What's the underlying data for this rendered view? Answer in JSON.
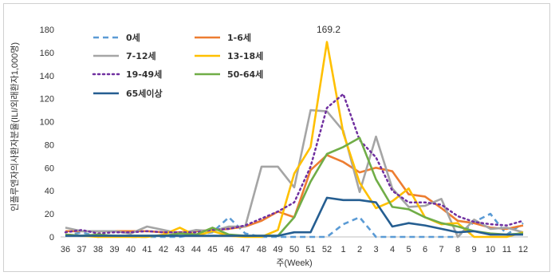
{
  "chart_data": {
    "type": "line",
    "title": "",
    "xlabel": "주(Week)",
    "ylabel": "인플루엔자의사환자분율(ILI/외래환자1,000명)",
    "ylim": [
      0,
      180
    ],
    "yticks": [
      0,
      20,
      40,
      60,
      80,
      100,
      120,
      140,
      160,
      180
    ],
    "grid": false,
    "legend_position": "top",
    "annotation": "169.2",
    "x": [
      "36",
      "37",
      "38",
      "39",
      "40",
      "41",
      "42",
      "43",
      "44",
      "45",
      "46",
      "47",
      "48",
      "49",
      "50",
      "51",
      "52",
      "1",
      "2",
      "3",
      "4",
      "5",
      "6",
      "7",
      "8",
      "9",
      "10",
      "11",
      "12"
    ],
    "series": [
      {
        "name": "0세",
        "color": "#5b9bd5",
        "dash": "dashed",
        "values": [
          1,
          4,
          0,
          1,
          0,
          0,
          0,
          0,
          2,
          4,
          17,
          3,
          0,
          0,
          0,
          0,
          0,
          11,
          17,
          0,
          0,
          0,
          0,
          0,
          0,
          13,
          20,
          2,
          12
        ]
      },
      {
        "name": "1-6세",
        "color": "#ed7d31",
        "dash": "solid",
        "values": [
          5,
          5,
          5,
          5,
          5,
          5,
          4,
          4,
          5,
          6,
          7,
          9,
          14,
          22,
          17,
          58,
          71,
          65,
          56,
          60,
          57,
          37,
          35,
          25,
          14,
          12,
          8,
          7,
          10
        ]
      },
      {
        "name": "7-12세",
        "color": "#a5a5a5",
        "dash": "solid",
        "values": [
          8,
          5,
          5,
          5,
          3,
          9,
          6,
          3,
          6,
          5,
          9,
          9,
          61,
          61,
          43,
          110,
          109,
          92,
          39,
          87,
          42,
          26,
          27,
          33,
          0,
          15,
          7,
          8,
          4
        ]
      },
      {
        "name": "13-18세",
        "color": "#ffc000",
        "dash": "solid",
        "values": [
          2,
          1,
          0,
          0,
          0,
          0,
          2,
          8,
          1,
          5,
          1,
          0,
          0,
          6,
          55,
          78,
          169.2,
          90,
          47,
          25,
          31,
          42,
          17,
          11,
          12,
          0,
          0,
          0,
          4
        ]
      },
      {
        "name": "19-49세",
        "color": "#7030a0",
        "dash": "dotted",
        "values": [
          4,
          6,
          3,
          4,
          4,
          5,
          4,
          4,
          4,
          6,
          7,
          10,
          16,
          22,
          30,
          61,
          112,
          124,
          84,
          69,
          40,
          30,
          30,
          28,
          18,
          13,
          11,
          10,
          14
        ]
      },
      {
        "name": "50-64세",
        "color": "#70ad47",
        "dash": "solid",
        "values": [
          2,
          1,
          2,
          1,
          1,
          1,
          1,
          3,
          2,
          8,
          2,
          1,
          1,
          1,
          17,
          48,
          72,
          78,
          86,
          50,
          26,
          24,
          17,
          12,
          9,
          5,
          3,
          2,
          3
        ]
      },
      {
        "name": "65세이상",
        "color": "#255e91",
        "dash": "solid",
        "values": [
          1,
          1,
          1,
          1,
          1,
          1,
          1,
          1,
          1,
          1,
          1,
          1,
          1,
          1,
          4,
          4,
          34,
          32,
          32,
          30,
          9,
          12,
          10,
          7,
          4,
          5,
          2,
          2,
          2
        ]
      }
    ]
  }
}
